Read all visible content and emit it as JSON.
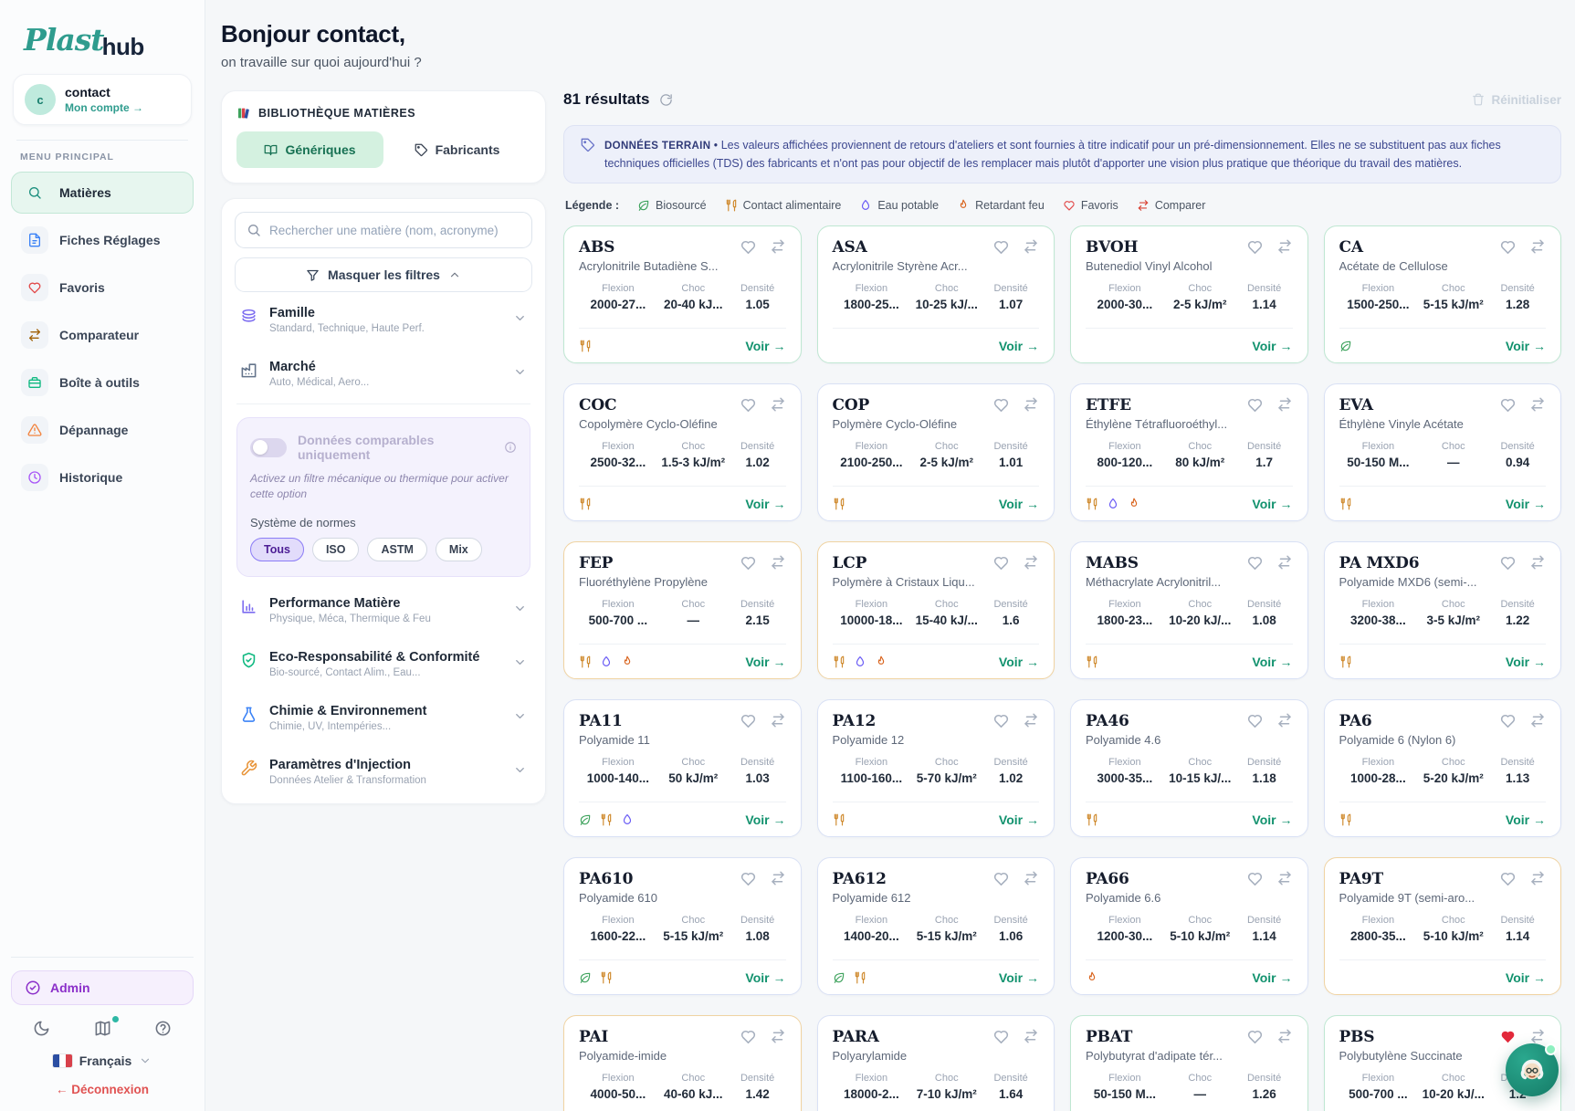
{
  "sidebar": {
    "logo": {
      "part1": "Plast",
      "part2": "hub"
    },
    "user": {
      "initial": "c",
      "name": "contact",
      "link": "Mon compte →"
    },
    "section_label": "MENU PRINCIPAL",
    "menu": [
      {
        "label": "Matières",
        "icon": "search",
        "color": "#1c8f7e",
        "active": true
      },
      {
        "label": "Fiches Réglages",
        "icon": "file",
        "color": "#3b82f6",
        "active": false
      },
      {
        "label": "Favoris",
        "icon": "heart",
        "color": "#e24a4a",
        "active": false
      },
      {
        "label": "Comparateur",
        "icon": "compare",
        "color": "#a16207",
        "active": false
      },
      {
        "label": "Boîte à outils",
        "icon": "toolbox",
        "color": "#10b981",
        "active": false
      },
      {
        "label": "Dépannage",
        "icon": "warning",
        "color": "#f2823c",
        "active": false
      },
      {
        "label": "Historique",
        "icon": "clock",
        "color": "#a855f7",
        "active": false
      }
    ],
    "admin_label": "Admin",
    "language_label": "Français",
    "logout_label": "← Déconnexion"
  },
  "header": {
    "greeting": "Bonjour contact,",
    "subtitle": "on travaille sur quoi aujourd'hui ?"
  },
  "library": {
    "title": "BIBLIOTHÈQUE MATIÈRES",
    "tabs": [
      {
        "label": "Génériques",
        "icon": "book",
        "active": true
      },
      {
        "label": "Fabricants",
        "icon": "tag",
        "active": false
      }
    ]
  },
  "filters": {
    "search_placeholder": "Rechercher une matière (nom, acronyme)",
    "hide_filters_label": "Masquer les filtres",
    "sections_top": [
      {
        "title": "Famille",
        "subtitle": "Standard, Technique, Haute Perf.",
        "icon": "layers",
        "color": "#7c6cf0"
      },
      {
        "title": "Marché",
        "subtitle": "Auto, Médical, Aero...",
        "icon": "factory",
        "color": "#64748b"
      }
    ],
    "comparable": {
      "label": "Données comparables uniquement",
      "hint": "Activez un filtre mécanique ou thermique pour activer cette option",
      "norms_label": "Système de normes",
      "norms": [
        {
          "label": "Tous",
          "active": true
        },
        {
          "label": "ISO",
          "active": false
        },
        {
          "label": "ASTM",
          "active": false
        },
        {
          "label": "Mix",
          "active": false
        }
      ]
    },
    "sections_bottom": [
      {
        "title": "Performance Matière",
        "subtitle": "Physique, Méca, Thermique & Feu",
        "icon": "chart",
        "color": "#7c6cf0"
      },
      {
        "title": "Eco-Responsabilité & Conformité",
        "subtitle": "Bio-sourcé, Contact Alim., Eau...",
        "icon": "shield",
        "color": "#10b981"
      },
      {
        "title": "Chimie & Environnement",
        "subtitle": "Chimie, UV, Intempéries...",
        "icon": "flask",
        "color": "#3b82f6"
      },
      {
        "title": "Paramètres d'Injection",
        "subtitle": "Données Atelier & Transformation",
        "icon": "wrench",
        "color": "#e8963c"
      }
    ]
  },
  "results": {
    "count": "81 résultats",
    "reset_label": "Réinitialiser",
    "banner": {
      "tag": "DONNÉES TERRAIN",
      "separator": "•",
      "text": "Les valeurs affichées proviennent de retours d'ateliers et sont fournies à titre indicatif pour un pré-dimensionnement. Elles ne se substituent pas aux fiches techniques officielles (TDS) des fabricants et n'ont pas pour objectif de les remplacer mais plutôt d'apporter une vision plus pratique que théorique du travail des matières."
    },
    "legend": {
      "label": "Légende :",
      "items": [
        {
          "label": "Biosourcé",
          "icon": "leaf",
          "color": "#3da25c"
        },
        {
          "label": "Contact alimentaire",
          "icon": "food",
          "color": "#cf8a2e"
        },
        {
          "label": "Eau potable",
          "icon": "droplet",
          "color": "#6a5cf5"
        },
        {
          "label": "Retardant feu",
          "icon": "flame",
          "color": "#d9641e"
        },
        {
          "label": "Favoris",
          "icon": "heart",
          "color": "#e24a4a"
        },
        {
          "label": "Comparer",
          "icon": "compare",
          "color": "#d94436"
        }
      ]
    },
    "stat_labels": {
      "flexion": "Flexion",
      "choc": "Choc",
      "densite": "Densité"
    },
    "view_label": "Voir →",
    "badge_colors": {
      "leaf": "#3da25c",
      "food": "#cf8a2e",
      "droplet": "#6a5cf5",
      "flame": "#d9641e"
    },
    "cards": [
      {
        "acronym": "ABS",
        "name": "Acrylonitrile Butadiène S...",
        "flexion": "2000-27...",
        "choc": "20-40 kJ...",
        "densite": "1.05",
        "badges": [
          "food"
        ],
        "border": "green",
        "favorite": false
      },
      {
        "acronym": "ASA",
        "name": "Acrylonitrile Styrène Acr...",
        "flexion": "1800-25...",
        "choc": "10-25 kJ/...",
        "densite": "1.07",
        "badges": [],
        "border": "green",
        "favorite": false
      },
      {
        "acronym": "BVOH",
        "name": "Butenediol Vinyl Alcohol",
        "flexion": "2000-30...",
        "choc": "2-5 kJ/m²",
        "densite": "1.14",
        "badges": [],
        "border": "green",
        "favorite": false
      },
      {
        "acronym": "CA",
        "name": "Acétate de Cellulose",
        "flexion": "1500-250...",
        "choc": "5-15 kJ/m²",
        "densite": "1.28",
        "badges": [
          "leaf"
        ],
        "border": "green",
        "favorite": false
      },
      {
        "acronym": "COC",
        "name": "Copolymère Cyclo-Oléfine",
        "flexion": "2500-32...",
        "choc": "1.5-3 kJ/m²",
        "densite": "1.02",
        "badges": [
          "food"
        ],
        "border": "blue",
        "favorite": false
      },
      {
        "acronym": "COP",
        "name": "Polymère Cyclo-Oléfine",
        "flexion": "2100-250...",
        "choc": "2-5 kJ/m²",
        "densite": "1.01",
        "badges": [
          "food"
        ],
        "border": "blue",
        "favorite": false
      },
      {
        "acronym": "ETFE",
        "name": "Éthylène Tétrafluoroéthyl...",
        "flexion": "800-120...",
        "choc": "80 kJ/m²",
        "densite": "1.7",
        "badges": [
          "food",
          "droplet",
          "flame"
        ],
        "border": "blue",
        "favorite": false
      },
      {
        "acronym": "EVA",
        "name": "Éthylène Vinyle Acétate",
        "flexion": "50-150 M...",
        "choc": "—",
        "densite": "0.94",
        "badges": [
          "food"
        ],
        "border": "blue",
        "favorite": false
      },
      {
        "acronym": "FEP",
        "name": "Fluoréthylène Propylène",
        "flexion": "500-700 ...",
        "choc": "—",
        "densite": "2.15",
        "badges": [
          "food",
          "droplet",
          "flame"
        ],
        "border": "orange",
        "favorite": false
      },
      {
        "acronym": "LCP",
        "name": "Polymère à Cristaux Liqu...",
        "flexion": "10000-18...",
        "choc": "15-40 kJ/...",
        "densite": "1.6",
        "badges": [
          "food",
          "droplet",
          "flame"
        ],
        "border": "orange",
        "favorite": false
      },
      {
        "acronym": "MABS",
        "name": "Méthacrylate Acrylonitril...",
        "flexion": "1800-23...",
        "choc": "10-20 kJ/...",
        "densite": "1.08",
        "badges": [
          "food"
        ],
        "border": "blue",
        "favorite": false
      },
      {
        "acronym": "PA MXD6",
        "name": "Polyamide MXD6 (semi-...",
        "flexion": "3200-38...",
        "choc": "3-5 kJ/m²",
        "densite": "1.22",
        "badges": [
          "food"
        ],
        "border": "blue",
        "favorite": false
      },
      {
        "acronym": "PA11",
        "name": "Polyamide 11",
        "flexion": "1000-140...",
        "choc": "50 kJ/m²",
        "densite": "1.03",
        "badges": [
          "leaf",
          "food",
          "droplet"
        ],
        "border": "blue",
        "favorite": false
      },
      {
        "acronym": "PA12",
        "name": "Polyamide 12",
        "flexion": "1100-160...",
        "choc": "5-70 kJ/m²",
        "densite": "1.02",
        "badges": [
          "food"
        ],
        "border": "blue",
        "favorite": false
      },
      {
        "acronym": "PA46",
        "name": "Polyamide 4.6",
        "flexion": "3000-35...",
        "choc": "10-15 kJ/...",
        "densite": "1.18",
        "badges": [
          "food"
        ],
        "border": "blue",
        "favorite": false
      },
      {
        "acronym": "PA6",
        "name": "Polyamide 6 (Nylon 6)",
        "flexion": "1000-28...",
        "choc": "5-20 kJ/m²",
        "densite": "1.13",
        "badges": [
          "food"
        ],
        "border": "blue",
        "favorite": false
      },
      {
        "acronym": "PA610",
        "name": "Polyamide 610",
        "flexion": "1600-22...",
        "choc": "5-15 kJ/m²",
        "densite": "1.08",
        "badges": [
          "leaf",
          "food"
        ],
        "border": "blue",
        "favorite": false
      },
      {
        "acronym": "PA612",
        "name": "Polyamide 612",
        "flexion": "1400-20...",
        "choc": "5-15 kJ/m²",
        "densite": "1.06",
        "badges": [
          "leaf",
          "food"
        ],
        "border": "blue",
        "favorite": false
      },
      {
        "acronym": "PA66",
        "name": "Polyamide 6.6",
        "flexion": "1200-30...",
        "choc": "5-10 kJ/m²",
        "densite": "1.14",
        "badges": [
          "flame"
        ],
        "border": "blue",
        "favorite": false
      },
      {
        "acronym": "PA9T",
        "name": "Polyamide 9T (semi-aro...",
        "flexion": "2800-35...",
        "choc": "5-10 kJ/m²",
        "densite": "1.14",
        "badges": [],
        "border": "orange",
        "favorite": false
      },
      {
        "acronym": "PAI",
        "name": "Polyamide-imide",
        "flexion": "4000-50...",
        "choc": "40-60 kJ...",
        "densite": "1.42",
        "badges": [],
        "border": "orange",
        "favorite": false
      },
      {
        "acronym": "PARA",
        "name": "Polyarylamide",
        "flexion": "18000-2...",
        "choc": "7-10 kJ/m²",
        "densite": "1.64",
        "badges": [],
        "border": "blue",
        "favorite": false
      },
      {
        "acronym": "PBAT",
        "name": "Polybutyrat d'adipate tér...",
        "flexion": "50-150 M...",
        "choc": "—",
        "densite": "1.26",
        "badges": [],
        "border": "green",
        "favorite": false
      },
      {
        "acronym": "PBS",
        "name": "Polybutylène Succinate",
        "flexion": "500-700 ...",
        "choc": "10-20 kJ/...",
        "densite": "1.2",
        "badges": [],
        "border": "green",
        "favorite": true
      }
    ]
  }
}
